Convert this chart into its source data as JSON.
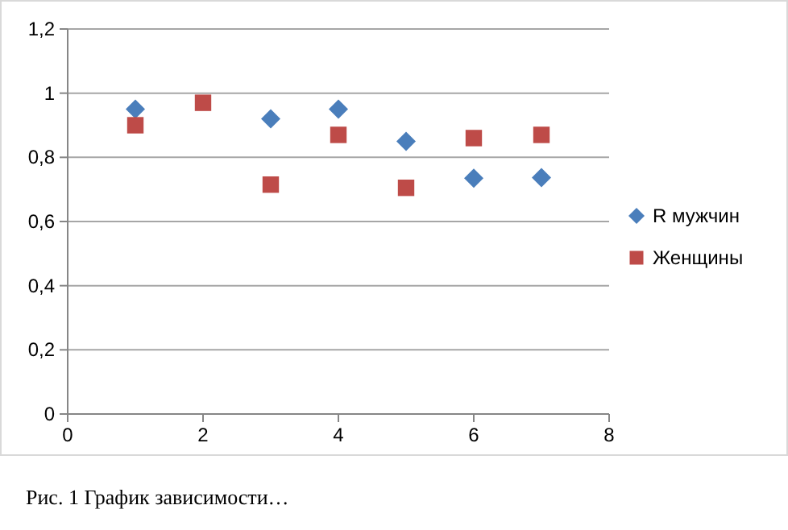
{
  "chart_data": {
    "type": "scatter",
    "x": [
      1,
      2,
      3,
      4,
      5,
      6,
      7
    ],
    "series": [
      {
        "name": "R мужчин",
        "color": "#4a7ebb",
        "marker": "diamond",
        "values": [
          0.95,
          null,
          0.92,
          0.95,
          0.85,
          0.735,
          0.737
        ]
      },
      {
        "name": "Женщины",
        "color": "#be4b48",
        "marker": "square",
        "values": [
          0.9,
          0.97,
          0.715,
          0.87,
          0.705,
          0.86,
          0.87
        ]
      }
    ],
    "xlim": [
      0,
      8
    ],
    "xticks": [
      0,
      2,
      4,
      6,
      8
    ],
    "ylim": [
      0,
      1.2
    ],
    "yticks": [
      {
        "value": 0,
        "label": "0"
      },
      {
        "value": 0.2,
        "label": "0,2"
      },
      {
        "value": 0.4,
        "label": "0,4"
      },
      {
        "value": 0.6,
        "label": "0,6"
      },
      {
        "value": 0.8,
        "label": "0,8"
      },
      {
        "value": 1,
        "label": "1"
      },
      {
        "value": 1.2,
        "label": "1,2"
      }
    ],
    "grid": "y",
    "legend": "right",
    "annotations": [
      "Рис. 1 График зависимости…"
    ]
  }
}
